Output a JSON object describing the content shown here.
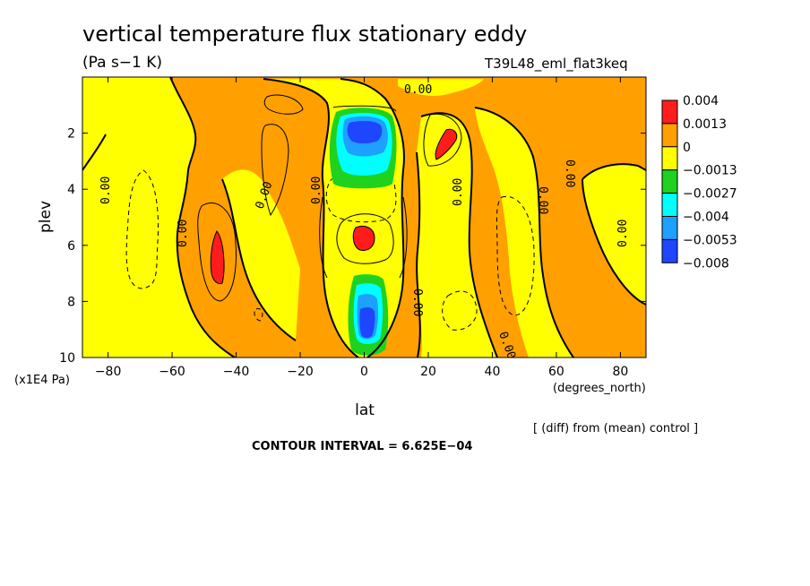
{
  "chart_data": {
    "type": "heatmap",
    "title": "vertical temperature flux stationary eddy",
    "units": "(Pa s−1 K)",
    "run_label": "T39L48_eml_flat3keq",
    "xlabel": "lat",
    "xunits": "(degrees_north)",
    "ylabel": "plev",
    "yunits": "(x1E4 Pa)",
    "xlim": [
      -88,
      88
    ],
    "ylim": [
      10,
      0
    ],
    "x_ticks": [
      "−80",
      "−60",
      "−40",
      "−20",
      "0",
      "20",
      "40",
      "60",
      "80"
    ],
    "x_tick_values": [
      -80,
      -60,
      -40,
      -20,
      0,
      20,
      40,
      60,
      80
    ],
    "y_ticks": [
      "2",
      "4",
      "6",
      "8",
      "10"
    ],
    "y_tick_values": [
      2,
      4,
      6,
      8,
      10
    ],
    "contour_label": "0.00",
    "contour_interval_text": "CONTOUR INTERVAL = 6.625E−04",
    "diff_note": "[ (diff) from (mean) control ]",
    "colorbar": {
      "levels": [
        "0.004",
        "0.0013",
        "0",
        "−0.0013",
        "−0.0027",
        "−0.004",
        "−0.0053",
        "−0.008"
      ],
      "colors": [
        "#ff1c1c",
        "#ffa000",
        "#ffff00",
        "#1ed21e",
        "#00ffff",
        "#1ea0ff",
        "#1e46ff"
      ]
    },
    "features": [
      {
        "name": "positive-max-sh",
        "lat": -45,
        "plev": 6.5,
        "level": "0.004"
      },
      {
        "name": "positive-max-eq-mid",
        "lat": 0,
        "plev": 5.8,
        "level": "0.004"
      },
      {
        "name": "positive-max-nh",
        "lat": 25,
        "plev": 2.5,
        "level": "0.004"
      },
      {
        "name": "negative-min-eq-upper",
        "lat": 0,
        "plev": 2.0,
        "level": "−0.008"
      },
      {
        "name": "negative-min-eq-lower",
        "lat": 0,
        "plev": 9.0,
        "level": "−0.0053"
      }
    ]
  }
}
